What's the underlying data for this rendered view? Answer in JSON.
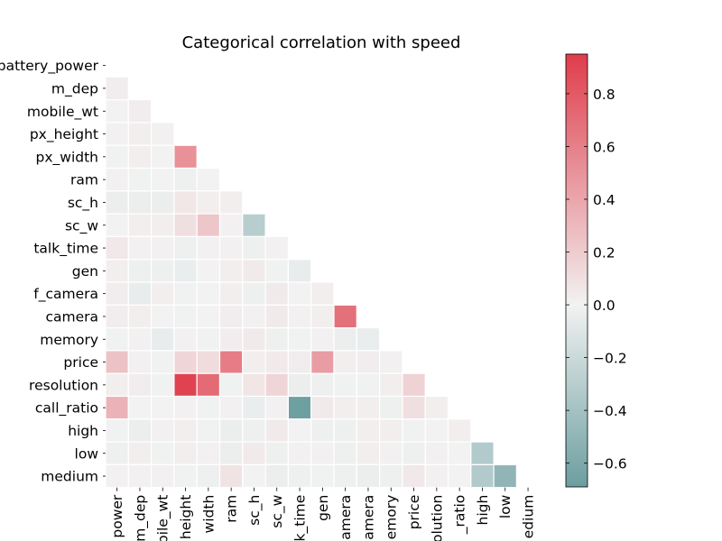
{
  "chart_data": {
    "type": "heatmap",
    "title": "Categorical correlation with speed",
    "row_labels": [
      "battery_power",
      "m_dep",
      "mobile_wt",
      "px_height",
      "px_width",
      "ram",
      "sc_h",
      "sc_w",
      "talk_time",
      "gen",
      "f_camera",
      "camera",
      "memory",
      "price",
      "resolution",
      "call_ratio",
      "high",
      "low",
      "medium"
    ],
    "col_labels": [
      "power",
      "m_dep",
      "pile_wt",
      "height",
      "width",
      "ram",
      "sc_h",
      "sc_w",
      "k_time",
      "gen",
      "amera",
      "amera",
      "emory",
      "price",
      "olution",
      "_ratio",
      "high",
      "low",
      "edium"
    ],
    "mask": "upper-triangle-and-diagonal",
    "matrix": [
      [],
      [
        0.03
      ],
      [
        0.0,
        0.03
      ],
      [
        0.01,
        0.02,
        0.01
      ],
      [
        -0.01,
        0.02,
        0.0,
        0.51
      ],
      [
        0.01,
        -0.01,
        0.0,
        -0.02,
        0.0
      ],
      [
        -0.03,
        -0.03,
        -0.03,
        0.06,
        0.02,
        0.02
      ],
      [
        0.0,
        0.02,
        0.02,
        0.1,
        0.23,
        0.01,
        -0.3
      ],
      [
        0.05,
        0.01,
        0.01,
        -0.02,
        0.01,
        0.01,
        -0.02,
        0.01
      ],
      [
        0.02,
        -0.02,
        -0.02,
        -0.04,
        0.0,
        0.02,
        0.04,
        -0.01,
        -0.05
      ],
      [
        0.03,
        -0.05,
        0.02,
        -0.01,
        0.0,
        0.02,
        -0.02,
        0.04,
        0.0,
        0.02
      ],
      [
        0.03,
        0.02,
        0.0,
        -0.01,
        0.0,
        0.03,
        0.01,
        0.04,
        0.01,
        0.02,
        0.68
      ],
      [
        -0.01,
        0.01,
        -0.05,
        0.01,
        -0.01,
        0.03,
        0.04,
        -0.02,
        -0.01,
        0.01,
        -0.03,
        -0.04
      ],
      [
        0.25,
        0.01,
        -0.01,
        0.15,
        0.12,
        0.62,
        0.02,
        0.04,
        0.03,
        0.45,
        0.02,
        0.03,
        0.01
      ],
      [
        0.02,
        0.03,
        -0.01,
        0.92,
        0.71,
        -0.01,
        0.07,
        0.15,
        -0.03,
        -0.02,
        -0.01,
        -0.01,
        0.02,
        0.17
      ],
      [
        0.33,
        0.0,
        0.0,
        0.01,
        -0.01,
        0.01,
        -0.04,
        0.01,
        -0.68,
        0.04,
        0.02,
        0.02,
        -0.02,
        0.1,
        0.02
      ],
      [
        -0.01,
        -0.03,
        0.01,
        0.02,
        -0.01,
        -0.03,
        -0.02,
        0.04,
        0.0,
        -0.02,
        -0.02,
        0.02,
        0.02,
        -0.01,
        0.0,
        0.02
      ],
      [
        -0.02,
        0.02,
        -0.01,
        0.02,
        0.01,
        -0.03,
        0.04,
        -0.02,
        0.01,
        0.01,
        -0.02,
        0.02,
        0.01,
        -0.02,
        0.01,
        0.0,
        -0.33
      ],
      [
        0.01,
        0.01,
        0.01,
        -0.01,
        -0.02,
        0.08,
        0.0,
        -0.03,
        -0.02,
        -0.01,
        -0.02,
        -0.03,
        -0.02,
        0.05,
        0.01,
        0.0,
        -0.33,
        -0.5
      ]
    ],
    "colorbar": {
      "min": -0.69,
      "max": 0.95,
      "ticks": [
        -0.6,
        -0.4,
        -0.2,
        0.0,
        0.2,
        0.4,
        0.6,
        0.8
      ],
      "tick_labels": [
        "−0.6",
        "−0.4",
        "−0.2",
        "0.0",
        "0.2",
        "0.4",
        "0.6",
        "0.8"
      ]
    },
    "colors": {
      "negative": "#6c9ea0",
      "center": "#f2f2f2",
      "positive": "#df3d4b",
      "cell_border": "#ffffff"
    },
    "grid": false
  }
}
